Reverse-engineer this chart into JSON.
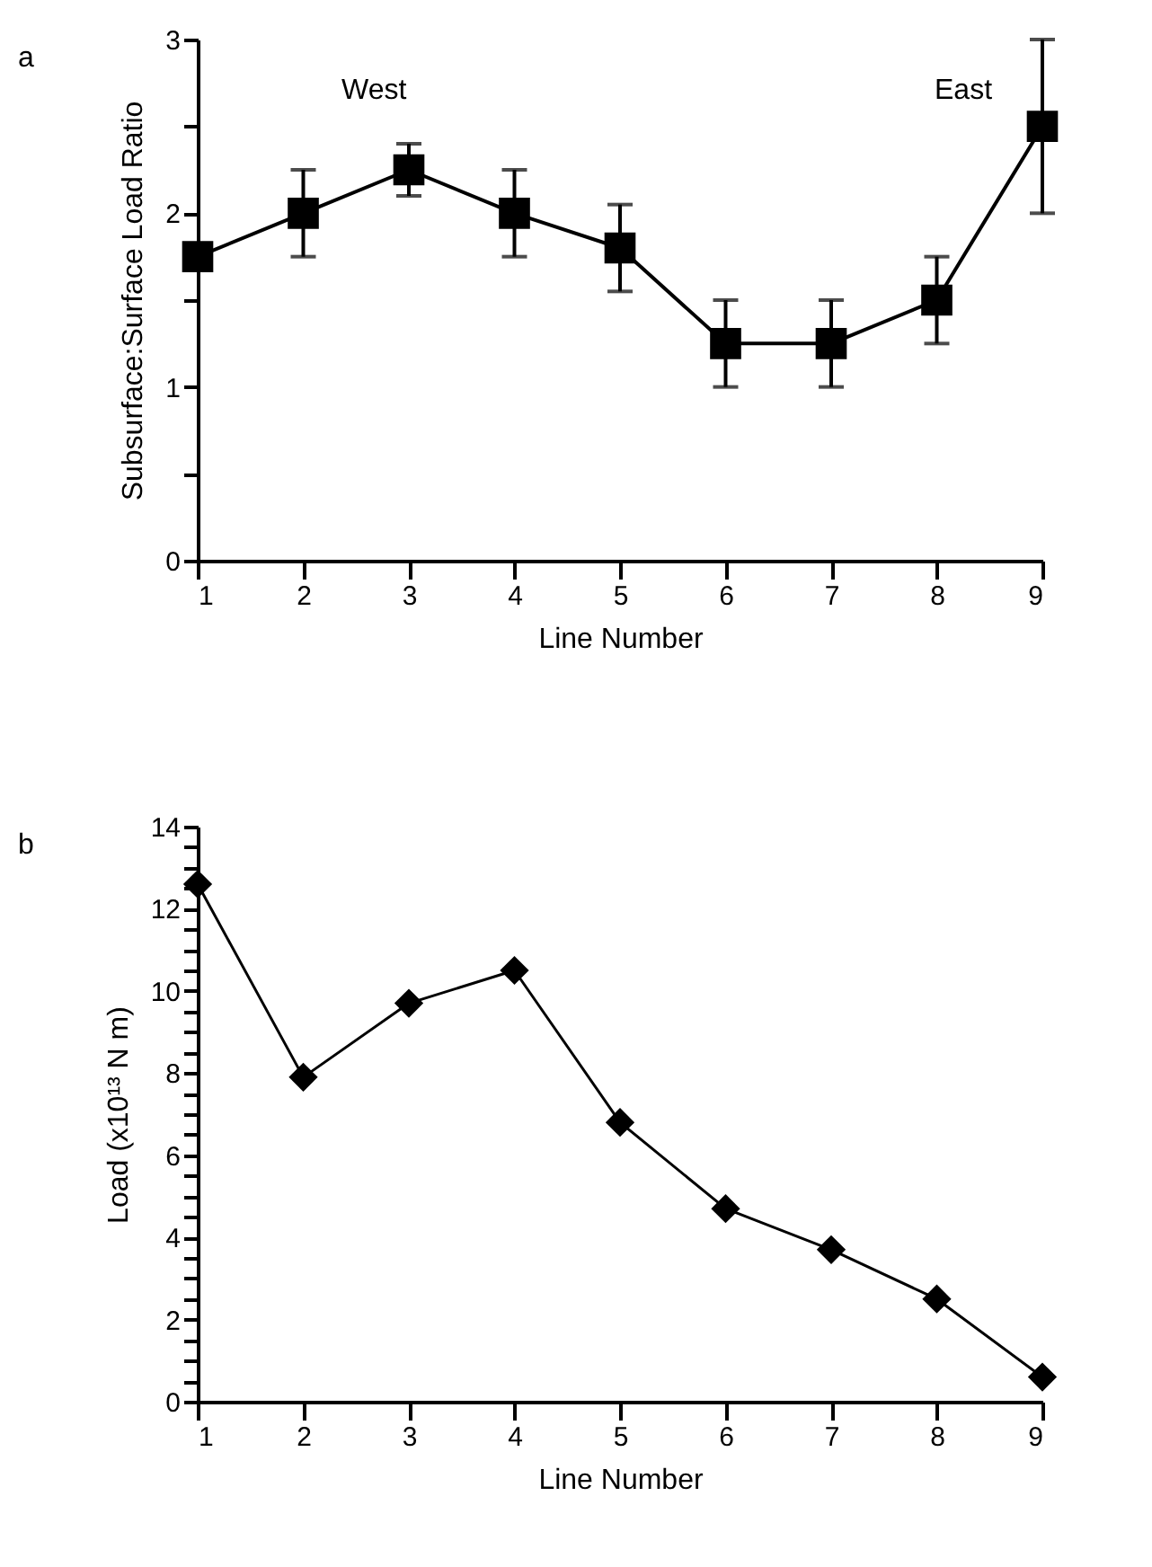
{
  "chart_data": [
    {
      "type": "line",
      "xlabel": "Line Number",
      "ylabel": "Subsurface:Surface Load Ratio",
      "x": [
        1,
        2,
        3,
        4,
        5,
        6,
        7,
        8,
        9
      ],
      "series": [
        {
          "color": "#000000",
          "values": [
            1.75,
            2.0,
            2.25,
            2.0,
            1.8,
            1.25,
            1.25,
            1.5,
            2.5
          ],
          "errors": [
            null,
            0.25,
            0.15,
            0.25,
            0.25,
            0.25,
            0.25,
            0.25,
            0.5
          ]
        }
      ],
      "xlim": [
        1,
        9
      ],
      "xticks": [
        1,
        2,
        3,
        4,
        5,
        6,
        7,
        8,
        9
      ],
      "ylim": [
        0,
        3
      ],
      "yticks": [
        0,
        {
          "value": 0.5,
          "label": null
        },
        1,
        {
          "value": 1.5,
          "label": null
        },
        2,
        {
          "value": 2.5,
          "label": null
        },
        3
      ],
      "marker": "square",
      "line_style": "solid",
      "grid": false,
      "annotations": [
        "a",
        "West",
        "East"
      ]
    },
    {
      "type": "line",
      "xlabel": "Line Number",
      "ylabel": "Load (x10¹³ N m)",
      "x": [
        1,
        2,
        3,
        4,
        5,
        6,
        7,
        8,
        9
      ],
      "series": [
        {
          "color": "#000000",
          "values": [
            12.6,
            7.9,
            9.7,
            10.5,
            6.8,
            4.7,
            3.7,
            2.5,
            0.6
          ]
        }
      ],
      "xlim": [
        1,
        9
      ],
      "xticks": [
        1,
        2,
        3,
        4,
        5,
        6,
        7,
        8,
        9
      ],
      "ylim": [
        0,
        14
      ],
      "yticks": [
        0,
        {
          "value": 0.5,
          "label": null
        },
        {
          "value": 1,
          "label": null
        },
        {
          "value": 1.5,
          "label": null
        },
        2,
        {
          "value": 2.5,
          "label": null
        },
        {
          "value": 3,
          "label": null
        },
        {
          "value": 3.5,
          "label": null
        },
        4,
        {
          "value": 4.5,
          "label": null
        },
        {
          "value": 5,
          "label": null
        },
        {
          "value": 5.5,
          "label": null
        },
        6,
        {
          "value": 6.5,
          "label": null
        },
        {
          "value": 7,
          "label": null
        },
        {
          "value": 7.5,
          "label": null
        },
        8,
        {
          "value": 8.5,
          "label": null
        },
        {
          "value": 9,
          "label": null
        },
        {
          "value": 9.5,
          "label": null
        },
        10,
        {
          "value": 10.5,
          "label": null
        },
        {
          "value": 11,
          "label": null
        },
        {
          "value": 11.5,
          "label": null
        },
        12,
        {
          "value": 12.5,
          "label": null
        },
        {
          "value": 13,
          "label": null
        },
        {
          "value": 13.5,
          "label": null
        },
        14
      ],
      "marker": "diamond",
      "line_style": "solid",
      "grid": false,
      "annotations": [
        "b"
      ]
    }
  ]
}
